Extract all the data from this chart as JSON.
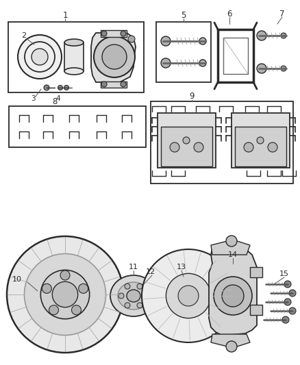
{
  "bg_color": "#ffffff",
  "line_color": "#2a2a2a",
  "gray_light": "#cccccc",
  "gray_mid": "#aaaaaa",
  "gray_dark": "#888888",
  "fig_width": 4.38,
  "fig_height": 5.33,
  "dpi": 100
}
